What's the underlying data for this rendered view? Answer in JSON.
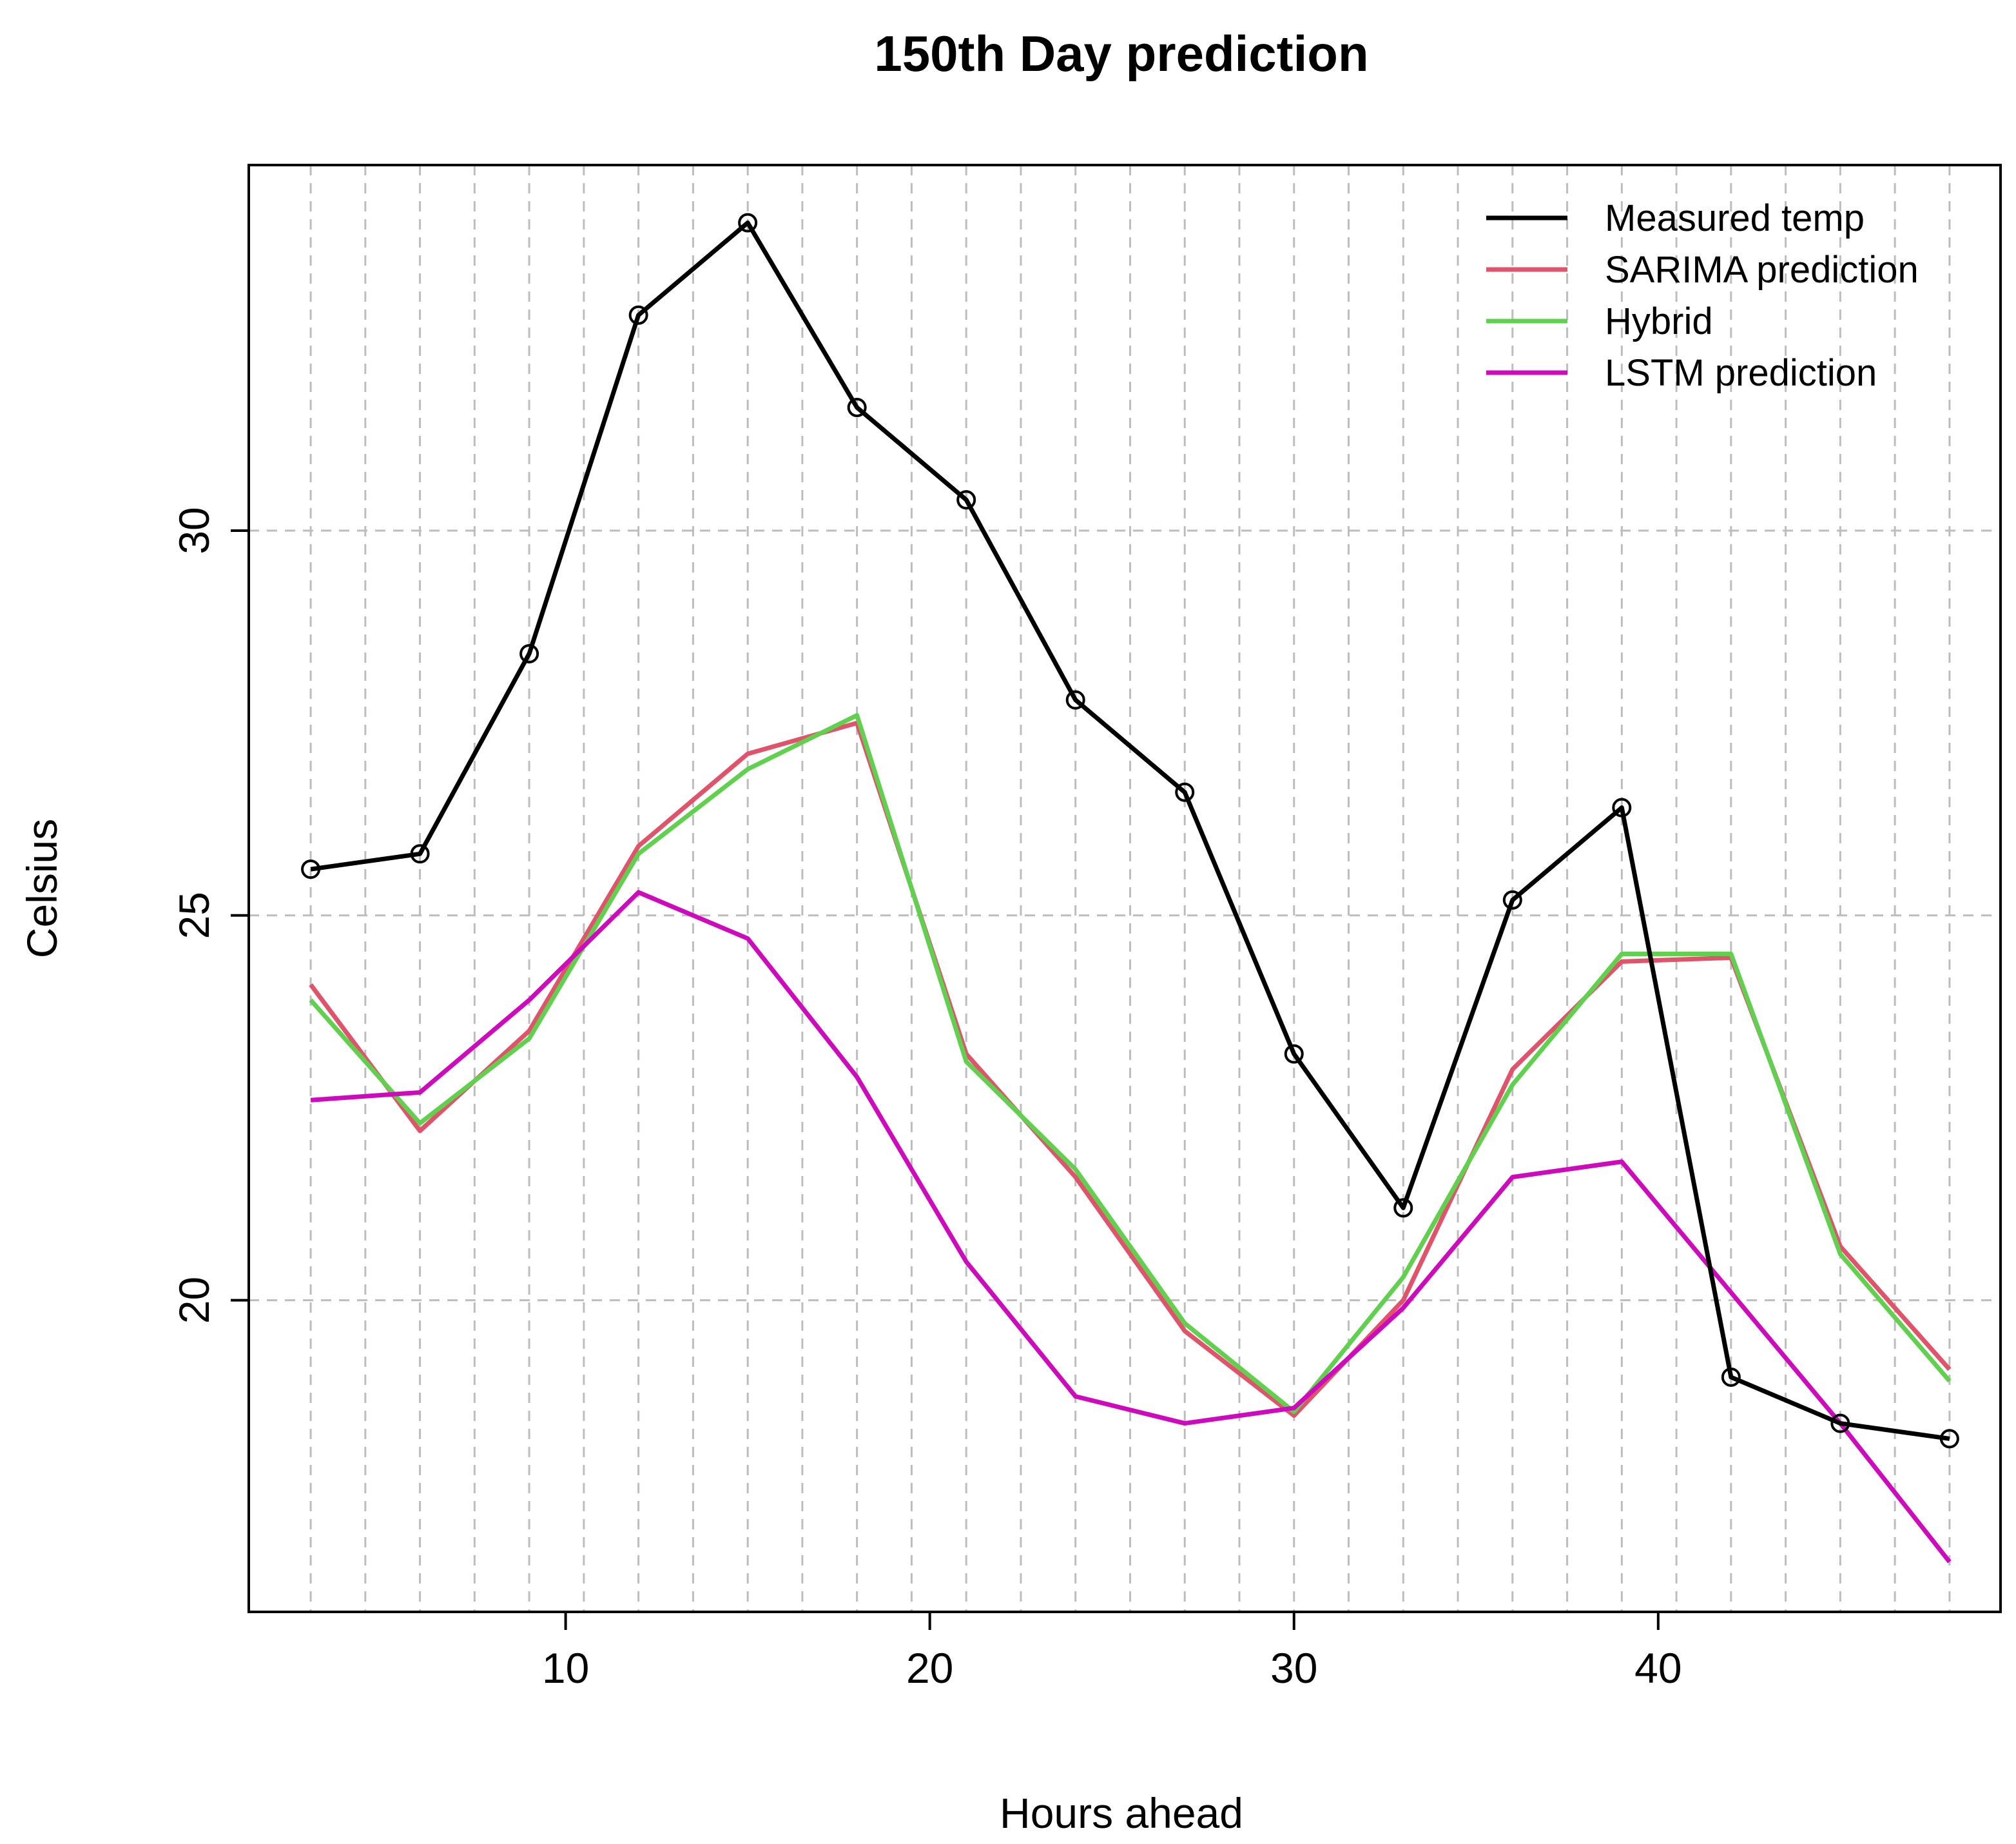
{
  "chart_data": {
    "type": "line",
    "title": "150th Day prediction",
    "xlabel": "Hours ahead",
    "ylabel": "Celsius",
    "xlim": [
      1.3,
      49.4
    ],
    "ylim": [
      15.95,
      34.75
    ],
    "grid": true,
    "legend_position": "top-right",
    "x_ticks": [
      10,
      20,
      30,
      40
    ],
    "y_ticks": [
      20,
      25,
      30
    ],
    "x": [
      3,
      6,
      9,
      12,
      15,
      18,
      21,
      24,
      27,
      30,
      33,
      36,
      39,
      42,
      45,
      48
    ],
    "series": [
      {
        "name": "Measured temp",
        "color": "#000000",
        "markers": true,
        "x": [
          3,
          6,
          9,
          12,
          15,
          18,
          21,
          24,
          27,
          30,
          33,
          36,
          39,
          42,
          45,
          48
        ],
        "values": [
          25.6,
          25.8,
          28.4,
          32.8,
          34.0,
          31.6,
          30.4,
          27.8,
          26.6,
          23.2,
          21.2,
          25.2,
          26.4,
          19.0,
          18.4,
          18.2
        ]
      },
      {
        "name": "SARIMA prediction",
        "color": "#df536b",
        "markers": false,
        "x": [
          3,
          6,
          9,
          12,
          15,
          18,
          21,
          24,
          27,
          30,
          33,
          36,
          39,
          42,
          45,
          48
        ],
        "values": [
          24.1,
          22.2,
          23.5,
          25.9,
          27.1,
          27.5,
          23.2,
          21.6,
          19.6,
          18.5,
          20.0,
          23.0,
          24.4,
          24.45,
          20.7,
          19.1
        ]
      },
      {
        "name": "Hybrid",
        "color": "#61d04f",
        "markers": false,
        "x": [
          3,
          6,
          9,
          12,
          15,
          18,
          21,
          24,
          27,
          30,
          33,
          36,
          39,
          42,
          45,
          48
        ],
        "values": [
          23.9,
          22.3,
          23.4,
          25.8,
          26.9,
          27.6,
          23.1,
          21.7,
          19.7,
          18.55,
          20.3,
          22.8,
          24.5,
          24.5,
          20.6,
          18.95
        ]
      },
      {
        "name": "LSTM prediction",
        "color": "#cd0bbc",
        "markers": false,
        "x": [
          3,
          6,
          9,
          12,
          15,
          18,
          21,
          24,
          27,
          30,
          33,
          36,
          39,
          42,
          45,
          48
        ],
        "values": [
          22.6,
          22.7,
          23.9,
          25.3,
          24.7,
          22.9,
          20.5,
          18.75,
          18.4,
          18.6,
          19.9,
          21.6,
          21.8,
          20.1,
          18.4,
          16.6
        ]
      }
    ]
  }
}
